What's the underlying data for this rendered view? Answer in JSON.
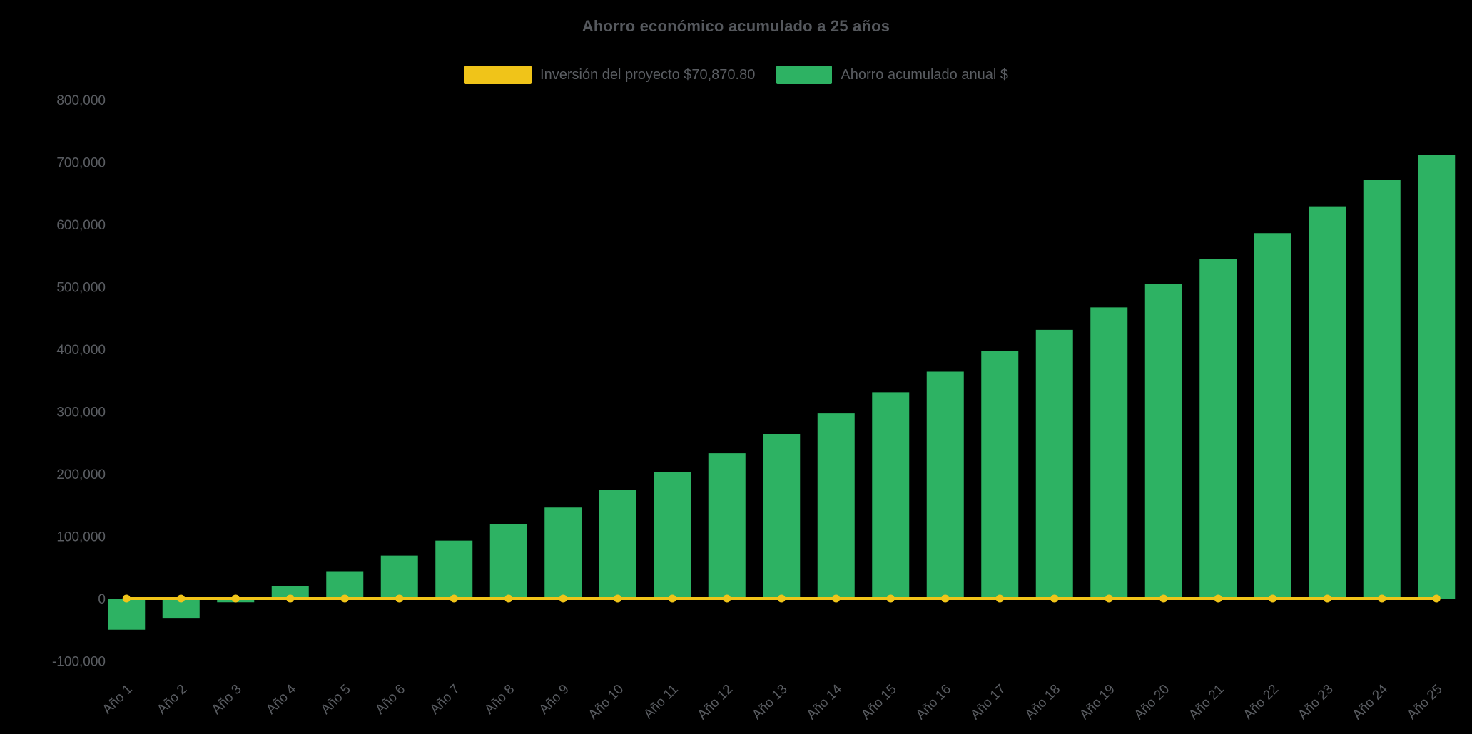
{
  "page": {
    "background": "#000000"
  },
  "chart_data": {
    "type": "bar",
    "title": "Ahorro económico acumulado a 25 años",
    "xlabel": "",
    "ylabel": "",
    "grid": false,
    "legend_position": "top",
    "ylim": [
      -100000,
      850000
    ],
    "yticks": [
      800000,
      700000,
      600000,
      500000,
      400000,
      300000,
      200000,
      100000,
      0,
      -100000
    ],
    "categories": [
      "Año 1",
      "Año 2",
      "Año 3",
      "Año 4",
      "Año 5",
      "Año 6",
      "Año 7",
      "Año 8",
      "Año 9",
      "Año 10",
      "Año 11",
      "Año 12",
      "Año 13",
      "Año 14",
      "Año 15",
      "Año 16",
      "Año 17",
      "Año 18",
      "Año 19",
      "Año 20",
      "Año 21",
      "Año 22",
      "Año 23",
      "Año 24",
      "Año 25"
    ],
    "series": [
      {
        "name": "Inversión del proyecto $70,870.80",
        "type": "line",
        "color": "#f0c419",
        "marker": "circle",
        "values": [
          0,
          0,
          0,
          0,
          0,
          0,
          0,
          0,
          0,
          0,
          0,
          0,
          0,
          0,
          0,
          0,
          0,
          0,
          0,
          0,
          0,
          0,
          0,
          0,
          0
        ]
      },
      {
        "name": "Ahorro acumulado anual $",
        "type": "bar",
        "color": "#2db263",
        "values": [
          -50000,
          -31000,
          -6000,
          20000,
          44000,
          69000,
          93000,
          120000,
          146000,
          174000,
          203000,
          233000,
          264000,
          297000,
          331000,
          364000,
          397000,
          431000,
          467000,
          505000,
          545000,
          586000,
          629000,
          671000,
          712000
        ]
      }
    ]
  }
}
